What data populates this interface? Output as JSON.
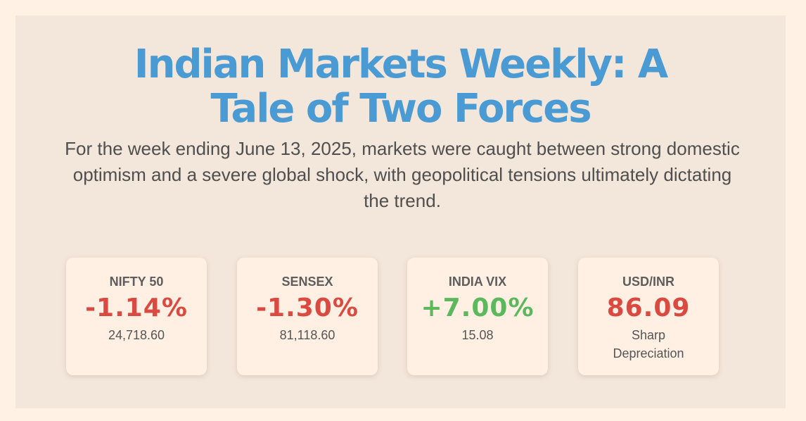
{
  "header": {
    "title_line_1": "Indian Markets Weekly: A",
    "title_line_2": "Tale of Two Forces",
    "subtitle": "For the week ending June 13, 2025, markets were caught between strong domestic optimism and a severe global shock, with geopolitical tensions ultimately dictating the trend."
  },
  "cards": [
    {
      "label": "NIFTY 50",
      "value": "-1.14%",
      "sub": "24,718.60",
      "trend": "negative"
    },
    {
      "label": "SENSEX",
      "value": "-1.30%",
      "sub": "81,118.60",
      "trend": "negative"
    },
    {
      "label": "INDIA VIX",
      "value": "+7.00%",
      "sub": "15.08",
      "trend": "positive"
    },
    {
      "label": "USD/INR",
      "value": "86.09",
      "sub": "Sharp Depreciation",
      "trend": "negative"
    }
  ],
  "colors": {
    "page_background": "#fff1e4",
    "panel_background": "#f3e6da",
    "title": "#4a9ad4",
    "negative": "#db4a41",
    "positive": "#5cb85c"
  }
}
